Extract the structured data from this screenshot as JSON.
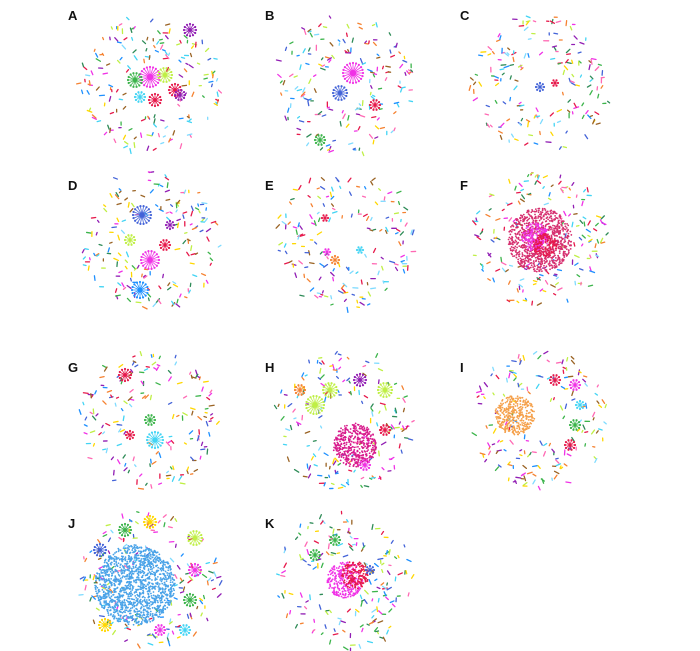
{
  "panels": [
    {
      "label": "A"
    },
    {
      "label": "B"
    },
    {
      "label": "C"
    },
    {
      "label": "D"
    },
    {
      "label": "E"
    },
    {
      "label": "F"
    },
    {
      "label": "G"
    },
    {
      "label": "H"
    },
    {
      "label": "I"
    },
    {
      "label": "J"
    },
    {
      "label": "K"
    }
  ]
}
